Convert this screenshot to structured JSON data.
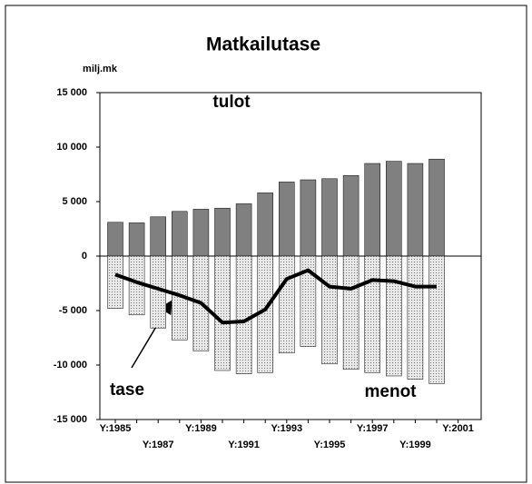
{
  "chart_data": {
    "type": "bar",
    "title": "Matkailutase",
    "y_label": "milj.mk",
    "annotations": [
      "tulot",
      "tase",
      "menot"
    ],
    "categories": [
      "Y:1985",
      null,
      "Y:1987",
      null,
      "Y:1989",
      null,
      "Y:1991",
      null,
      "Y:1993",
      null,
      "Y:1995",
      null,
      "Y:1997",
      null,
      "Y:1999",
      null,
      "Y:2001"
    ],
    "series": [
      {
        "name": "tulot",
        "type": "bar",
        "color": "#808080",
        "values": [
          3100,
          3050,
          3600,
          4100,
          4300,
          4400,
          4800,
          5800,
          6800,
          7000,
          7100,
          7400,
          8500,
          8700,
          8500,
          8900,
          null
        ]
      },
      {
        "name": "menot",
        "type": "bar",
        "color": "#d8d8d8",
        "values": [
          -4800,
          -5400,
          -6600,
          -7700,
          -8700,
          -10500,
          -10800,
          -10700,
          -8900,
          -8300,
          -9900,
          -10400,
          -10700,
          -11000,
          -11300,
          -11700,
          null
        ]
      },
      {
        "name": "tase",
        "type": "line",
        "color": "#000000",
        "values": [
          -1700,
          -2400,
          -3000,
          -3600,
          -4300,
          -6100,
          -6000,
          -4900,
          -2100,
          -1300,
          -2800,
          -3000,
          -2200,
          -2300,
          -2800,
          -2800,
          null
        ]
      }
    ],
    "ylim": [
      -15000,
      15000
    ],
    "yticks": [
      {
        "value": -15000,
        "label": "-15 000"
      },
      {
        "value": -10000,
        "label": "-10 000"
      },
      {
        "value": -5000,
        "label": "-5 000"
      },
      0,
      {
        "value": 5000,
        "label": "5 000"
      },
      {
        "value": 10000,
        "label": "10 000"
      },
      {
        "value": 15000,
        "label": "15 000"
      }
    ]
  }
}
